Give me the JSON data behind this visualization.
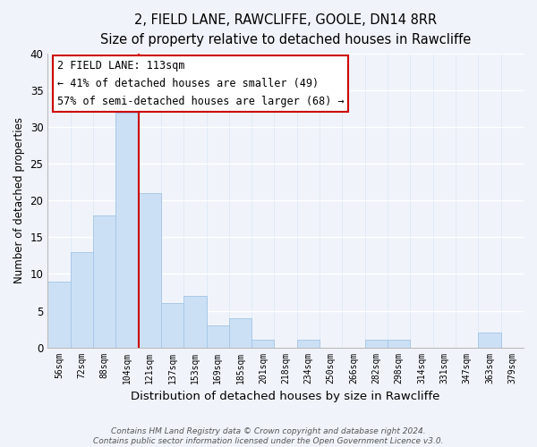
{
  "title": "2, FIELD LANE, RAWCLIFFE, GOOLE, DN14 8RR",
  "subtitle": "Size of property relative to detached houses in Rawcliffe",
  "xlabel": "Distribution of detached houses by size in Rawcliffe",
  "ylabel": "Number of detached properties",
  "bar_labels": [
    "56sqm",
    "72sqm",
    "88sqm",
    "104sqm",
    "121sqm",
    "137sqm",
    "153sqm",
    "169sqm",
    "185sqm",
    "201sqm",
    "218sqm",
    "234sqm",
    "250sqm",
    "266sqm",
    "282sqm",
    "298sqm",
    "314sqm",
    "331sqm",
    "347sqm",
    "363sqm",
    "379sqm"
  ],
  "bar_values": [
    9,
    13,
    18,
    32,
    21,
    6,
    7,
    3,
    4,
    1,
    0,
    1,
    0,
    0,
    1,
    1,
    0,
    0,
    0,
    2,
    0
  ],
  "bar_color": "#cce0f5",
  "bar_edge_color": "#a8c8e8",
  "vline_color": "#cc0000",
  "annotation_title": "2 FIELD LANE: 113sqm",
  "annotation_line1": "← 41% of detached houses are smaller (49)",
  "annotation_line2": "57% of semi-detached houses are larger (68) →",
  "annotation_box_color": "#ffffff",
  "annotation_box_edge": "#cc0000",
  "ylim": [
    0,
    40
  ],
  "yticks": [
    0,
    5,
    10,
    15,
    20,
    25,
    30,
    35,
    40
  ],
  "footer_line1": "Contains HM Land Registry data © Crown copyright and database right 2024.",
  "footer_line2": "Contains public sector information licensed under the Open Government Licence v3.0.",
  "background_color": "#f0f4fa",
  "plot_bg_color": "#f0f4fa",
  "grid_color": "#dce8f5"
}
